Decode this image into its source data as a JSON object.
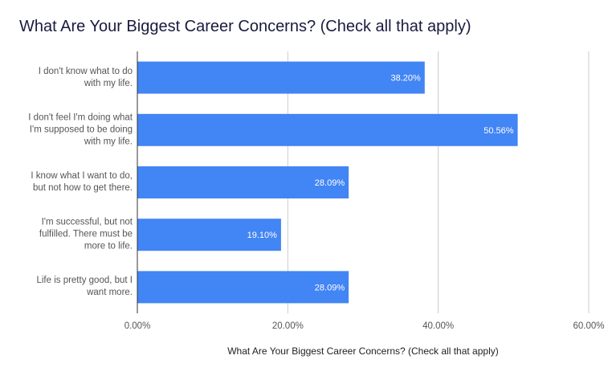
{
  "title": "What Are Your Biggest Career Concerns? (Check all that apply)",
  "colors": {
    "bar": "#4285f4",
    "grid": "#cccccc",
    "axis": "#333333",
    "label_text": "#ffffff"
  },
  "chart_data": {
    "type": "bar",
    "orientation": "horizontal",
    "title": "What Are Your Biggest Career Concerns? (Check all that apply)",
    "xlabel": "What Are Your Biggest Career Concerns? (Check all that apply)",
    "ylabel": "",
    "xlim": [
      0,
      60
    ],
    "x_ticks": [
      "0.00%",
      "20.00%",
      "40.00%",
      "60.00%"
    ],
    "grid": true,
    "legend": "none",
    "categories": [
      [
        "I don't know what to do",
        "with my life."
      ],
      [
        "I don't feel I'm doing what",
        "I'm supposed to be doing",
        "with my life."
      ],
      [
        "I know what I want to do,",
        "but not how to get there."
      ],
      [
        "I'm successful, but not",
        "fulfilled. There must be",
        "more to life."
      ],
      [
        "Life is pretty good, but I",
        "want more."
      ]
    ],
    "values": [
      38.2,
      50.56,
      28.09,
      19.1,
      28.09
    ],
    "data_labels": [
      "38.20%",
      "50.56%",
      "28.09%",
      "19.10%",
      "28.09%"
    ]
  }
}
